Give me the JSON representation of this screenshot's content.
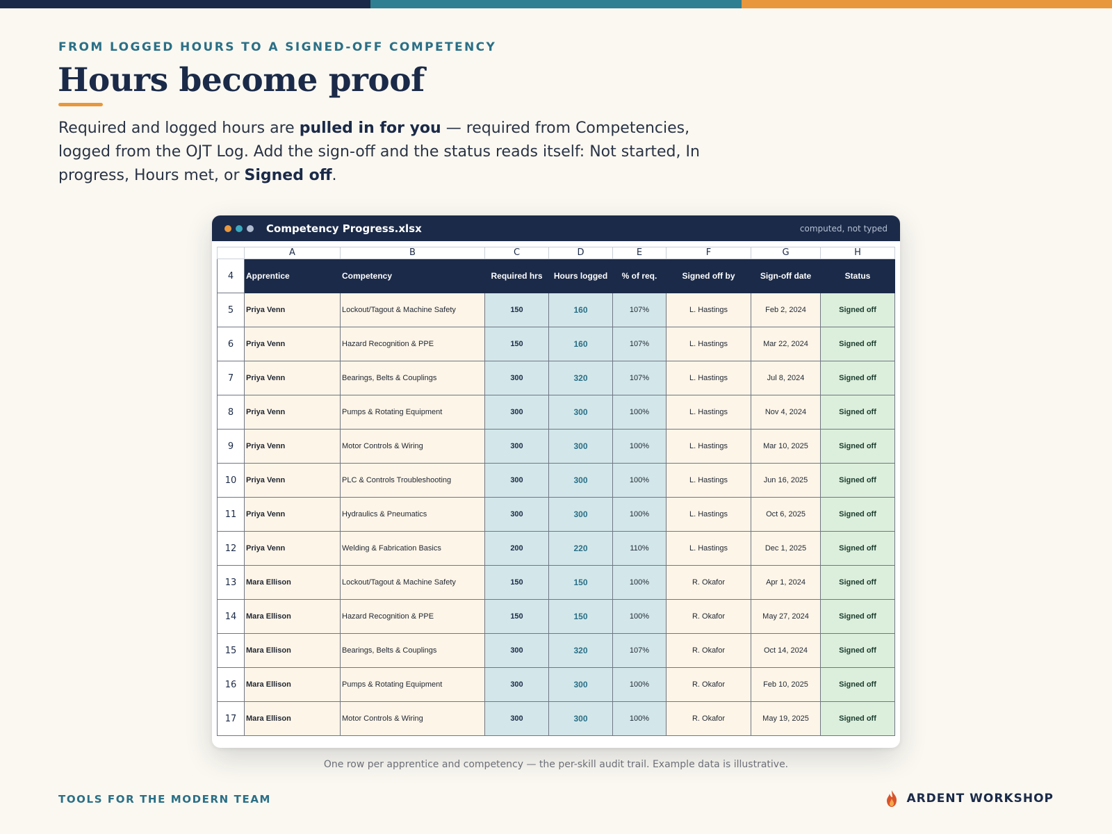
{
  "page": {
    "eyebrow": "FROM LOGGED HOURS TO A SIGNED-OFF COMPETENCY",
    "title": "Hours become proof",
    "lede": {
      "t1": "Required and logged hours are ",
      "b1": "pulled in for you",
      "t2": " — required from Competencies, logged from the OJT Log. Add the sign-off and the status reads itself: Not started, In progress, Hours met, or ",
      "b2": "Signed off",
      "t3": "."
    },
    "caption": "One row per apprentice and competency — the per-skill audit trail. Example data is illustrative.",
    "footer_left": "TOOLS FOR THE MODERN TEAM",
    "brand": "ARDENT WORKSHOP",
    "brand_icon": "flame-icon"
  },
  "window": {
    "title": "Competency Progress.xlsx",
    "note": "computed, not typed",
    "dots": [
      "#e8973d",
      "#3aa9bf",
      "#aebbd0"
    ]
  },
  "sheet": {
    "col_letters": [
      "A",
      "B",
      "C",
      "D",
      "E",
      "F",
      "G",
      "H"
    ],
    "header_row_num": "4",
    "headers": [
      "Apprentice",
      "Competency",
      "Required hrs",
      "Hours logged",
      "% of req.",
      "Signed off by",
      "Sign-off date",
      "Status"
    ],
    "rows": [
      {
        "n": "5",
        "apprentice": "Priya Venn",
        "competency": "Lockout/Tagout & Machine Safety",
        "req": "150",
        "logged": "160",
        "pct": "107%",
        "by": "L. Hastings",
        "date": "Feb 2, 2024",
        "status": "Signed off"
      },
      {
        "n": "6",
        "apprentice": "Priya Venn",
        "competency": "Hazard Recognition & PPE",
        "req": "150",
        "logged": "160",
        "pct": "107%",
        "by": "L. Hastings",
        "date": "Mar 22, 2024",
        "status": "Signed off"
      },
      {
        "n": "7",
        "apprentice": "Priya Venn",
        "competency": "Bearings, Belts & Couplings",
        "req": "300",
        "logged": "320",
        "pct": "107%",
        "by": "L. Hastings",
        "date": "Jul 8, 2024",
        "status": "Signed off"
      },
      {
        "n": "8",
        "apprentice": "Priya Venn",
        "competency": "Pumps & Rotating Equipment",
        "req": "300",
        "logged": "300",
        "pct": "100%",
        "by": "L. Hastings",
        "date": "Nov 4, 2024",
        "status": "Signed off"
      },
      {
        "n": "9",
        "apprentice": "Priya Venn",
        "competency": "Motor Controls & Wiring",
        "req": "300",
        "logged": "300",
        "pct": "100%",
        "by": "L. Hastings",
        "date": "Mar 10, 2025",
        "status": "Signed off"
      },
      {
        "n": "10",
        "apprentice": "Priya Venn",
        "competency": "PLC & Controls Troubleshooting",
        "req": "300",
        "logged": "300",
        "pct": "100%",
        "by": "L. Hastings",
        "date": "Jun 16, 2025",
        "status": "Signed off"
      },
      {
        "n": "11",
        "apprentice": "Priya Venn",
        "competency": "Hydraulics & Pneumatics",
        "req": "300",
        "logged": "300",
        "pct": "100%",
        "by": "L. Hastings",
        "date": "Oct 6, 2025",
        "status": "Signed off"
      },
      {
        "n": "12",
        "apprentice": "Priya Venn",
        "competency": "Welding & Fabrication Basics",
        "req": "200",
        "logged": "220",
        "pct": "110%",
        "by": "L. Hastings",
        "date": "Dec 1, 2025",
        "status": "Signed off"
      },
      {
        "n": "13",
        "apprentice": "Mara Ellison",
        "competency": "Lockout/Tagout & Machine Safety",
        "req": "150",
        "logged": "150",
        "pct": "100%",
        "by": "R. Okafor",
        "date": "Apr 1, 2024",
        "status": "Signed off"
      },
      {
        "n": "14",
        "apprentice": "Mara Ellison",
        "competency": "Hazard Recognition & PPE",
        "req": "150",
        "logged": "150",
        "pct": "100%",
        "by": "R. Okafor",
        "date": "May 27, 2024",
        "status": "Signed off"
      },
      {
        "n": "15",
        "apprentice": "Mara Ellison",
        "competency": "Bearings, Belts & Couplings",
        "req": "300",
        "logged": "320",
        "pct": "107%",
        "by": "R. Okafor",
        "date": "Oct 14, 2024",
        "status": "Signed off"
      },
      {
        "n": "16",
        "apprentice": "Mara Ellison",
        "competency": "Pumps & Rotating Equipment",
        "req": "300",
        "logged": "300",
        "pct": "100%",
        "by": "R. Okafor",
        "date": "Feb 10, 2025",
        "status": "Signed off"
      },
      {
        "n": "17",
        "apprentice": "Mara Ellison",
        "competency": "Motor Controls & Wiring",
        "req": "300",
        "logged": "300",
        "pct": "100%",
        "by": "R. Okafor",
        "date": "May 19, 2025",
        "status": "Signed off"
      }
    ]
  }
}
